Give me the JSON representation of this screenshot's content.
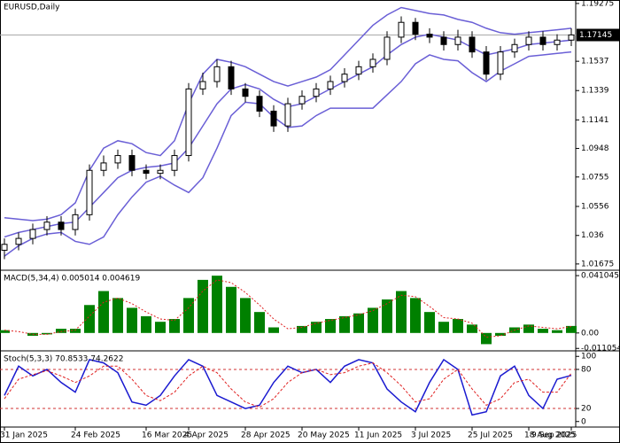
{
  "chart_data": [
    {
      "type": "candlestick",
      "title": "EURUSD,Daily",
      "last_price": 1.17145,
      "ylim": [
        1.0125,
        1.1951
      ],
      "yticks": [
        1.19275,
        1.1537,
        1.1339,
        1.1141,
        1.0948,
        1.0755,
        1.0556,
        1.036,
        1.01675
      ],
      "up_color": "#ffffff",
      "down_color": "#000000",
      "band_color": "#6a5fd6",
      "open": [
        1.026,
        1.03,
        1.034,
        1.04,
        1.045,
        1.04,
        1.05,
        1.08,
        1.085,
        1.09,
        1.08,
        1.078,
        1.08,
        1.09,
        1.135,
        1.14,
        1.15,
        1.135,
        1.13,
        1.12,
        1.11,
        1.125,
        1.13,
        1.135,
        1.14,
        1.145,
        1.15,
        1.155,
        1.17,
        1.18,
        1.172,
        1.17,
        1.165,
        1.17,
        1.16,
        1.145,
        1.16,
        1.165,
        1.17,
        1.165,
        1.168
      ],
      "close": [
        1.03,
        1.034,
        1.04,
        1.045,
        1.04,
        1.05,
        1.08,
        1.085,
        1.09,
        1.08,
        1.078,
        1.08,
        1.09,
        1.135,
        1.14,
        1.15,
        1.135,
        1.13,
        1.12,
        1.11,
        1.125,
        1.13,
        1.135,
        1.14,
        1.145,
        1.15,
        1.155,
        1.17,
        1.18,
        1.172,
        1.17,
        1.165,
        1.17,
        1.16,
        1.145,
        1.16,
        1.165,
        1.17,
        1.165,
        1.168,
        1.1715
      ],
      "high": [
        1.034,
        1.038,
        1.044,
        1.049,
        1.049,
        1.054,
        1.084,
        1.09,
        1.094,
        1.094,
        1.084,
        1.084,
        1.094,
        1.139,
        1.146,
        1.155,
        1.154,
        1.139,
        1.134,
        1.124,
        1.129,
        1.134,
        1.139,
        1.144,
        1.149,
        1.154,
        1.159,
        1.174,
        1.184,
        1.183,
        1.176,
        1.174,
        1.175,
        1.174,
        1.164,
        1.164,
        1.169,
        1.174,
        1.174,
        1.172,
        1.176
      ],
      "low": [
        1.02,
        1.026,
        1.03,
        1.036,
        1.036,
        1.036,
        1.046,
        1.076,
        1.081,
        1.076,
        1.074,
        1.074,
        1.076,
        1.086,
        1.131,
        1.136,
        1.131,
        1.126,
        1.116,
        1.106,
        1.106,
        1.121,
        1.126,
        1.131,
        1.136,
        1.141,
        1.146,
        1.151,
        1.166,
        1.168,
        1.166,
        1.161,
        1.161,
        1.156,
        1.141,
        1.141,
        1.156,
        1.161,
        1.161,
        1.161,
        1.164
      ],
      "bands": [
        {
          "values": [
            1.048,
            1.047,
            1.046,
            1.047,
            1.05,
            1.058,
            1.08,
            1.095,
            1.1,
            1.098,
            1.092,
            1.09,
            1.1,
            1.125,
            1.145,
            1.155,
            1.153,
            1.15,
            1.145,
            1.14,
            1.137,
            1.14,
            1.143,
            1.148,
            1.158,
            1.168,
            1.178,
            1.185,
            1.19,
            1.188,
            1.186,
            1.185,
            1.182,
            1.18,
            1.176,
            1.173,
            1.172,
            1.173,
            1.174,
            1.175,
            1.176
          ]
        },
        {
          "values": [
            1.035,
            1.038,
            1.04,
            1.042,
            1.044,
            1.045,
            1.055,
            1.065,
            1.075,
            1.08,
            1.082,
            1.083,
            1.085,
            1.095,
            1.11,
            1.125,
            1.135,
            1.138,
            1.135,
            1.128,
            1.123,
            1.125,
            1.13,
            1.135,
            1.14,
            1.145,
            1.15,
            1.158,
            1.165,
            1.17,
            1.172,
            1.17,
            1.168,
            1.163,
            1.158,
            1.16,
            1.162,
            1.165,
            1.166,
            1.167,
            1.168
          ]
        },
        {
          "values": [
            1.022,
            1.029,
            1.034,
            1.037,
            1.038,
            1.032,
            1.03,
            1.035,
            1.05,
            1.062,
            1.072,
            1.076,
            1.07,
            1.065,
            1.075,
            1.095,
            1.117,
            1.126,
            1.125,
            1.116,
            1.109,
            1.11,
            1.117,
            1.122,
            1.122,
            1.122,
            1.122,
            1.131,
            1.14,
            1.152,
            1.158,
            1.155,
            1.154,
            1.146,
            1.14,
            1.147,
            1.152,
            1.157,
            1.158,
            1.159,
            1.16
          ]
        }
      ]
    },
    {
      "type": "macd",
      "title": "MACD(5,34,4) 0.005014 0.004619",
      "ylim": [
        -0.0128,
        0.0449
      ],
      "yticks": [
        0.041045,
        {
          "value": 0,
          "label": "0.00"
        },
        -0.011054
      ],
      "series": [
        {
          "color": "#008000",
          "values": [
            0.002,
            0.0,
            -0.002,
            -0.001,
            0.003,
            0.003,
            0.02,
            0.03,
            0.025,
            0.018,
            0.012,
            0.008,
            0.01,
            0.025,
            0.038,
            0.041,
            0.033,
            0.025,
            0.015,
            0.004,
            0.0,
            0.005,
            0.008,
            0.01,
            0.012,
            0.014,
            0.018,
            0.024,
            0.03,
            0.025,
            0.015,
            0.008,
            0.01,
            0.006,
            -0.008,
            -0.002,
            0.004,
            0.006,
            0.003,
            0.002,
            0.005014
          ]
        },
        {
          "color": "#e02020",
          "values": [
            0.002,
            0.001,
            -0.001,
            -0.001,
            0.001,
            0.002,
            0.012,
            0.022,
            0.025,
            0.021,
            0.015,
            0.01,
            0.009,
            0.018,
            0.03,
            0.038,
            0.036,
            0.029,
            0.02,
            0.01,
            0.003,
            0.004,
            0.007,
            0.009,
            0.011,
            0.013,
            0.016,
            0.021,
            0.027,
            0.026,
            0.019,
            0.011,
            0.01,
            0.007,
            -0.003,
            -0.002,
            0.002,
            0.005,
            0.004,
            0.003,
            0.004619
          ]
        }
      ]
    },
    {
      "type": "stochastic",
      "title": "Stoch(5,3,3) 70.8533 74.2622",
      "ylim": [
        -8.5,
        108.5
      ],
      "yticks": [
        100,
        80,
        20,
        0
      ],
      "levels": [
        80,
        20
      ],
      "level_color": "#d03030",
      "categories": [
        "31 Jan 2025",
        null,
        null,
        null,
        null,
        "24 Feb 2025",
        null,
        null,
        null,
        null,
        "16 Mar 2025",
        null,
        null,
        "4 Apr 2025",
        null,
        null,
        null,
        "28 Apr 2025",
        null,
        null,
        null,
        "20 May 2025",
        null,
        null,
        null,
        "11 Jun 2025",
        null,
        null,
        null,
        "3 Jul 2025",
        null,
        null,
        null,
        "25 Jul 2025",
        null,
        null,
        null,
        "18 Aug 2025",
        null,
        null,
        "9 Sep 2025"
      ],
      "series": [
        {
          "color": "#1a1ad0",
          "values": [
            40,
            85,
            70,
            80,
            60,
            45,
            95,
            90,
            75,
            30,
            25,
            40,
            70,
            95,
            85,
            40,
            30,
            20,
            25,
            60,
            85,
            75,
            80,
            60,
            85,
            95,
            90,
            50,
            30,
            15,
            60,
            95,
            80,
            10,
            15,
            70,
            85,
            40,
            20,
            65,
            70.8533
          ]
        },
        {
          "color": "#e02020",
          "values": [
            35,
            65,
            72,
            78,
            70,
            60,
            70,
            85,
            85,
            65,
            40,
            32,
            45,
            70,
            85,
            75,
            50,
            30,
            22,
            35,
            60,
            75,
            80,
            72,
            75,
            85,
            90,
            75,
            55,
            30,
            35,
            65,
            80,
            50,
            25,
            35,
            60,
            65,
            45,
            45,
            74.2622
          ]
        }
      ]
    }
  ]
}
